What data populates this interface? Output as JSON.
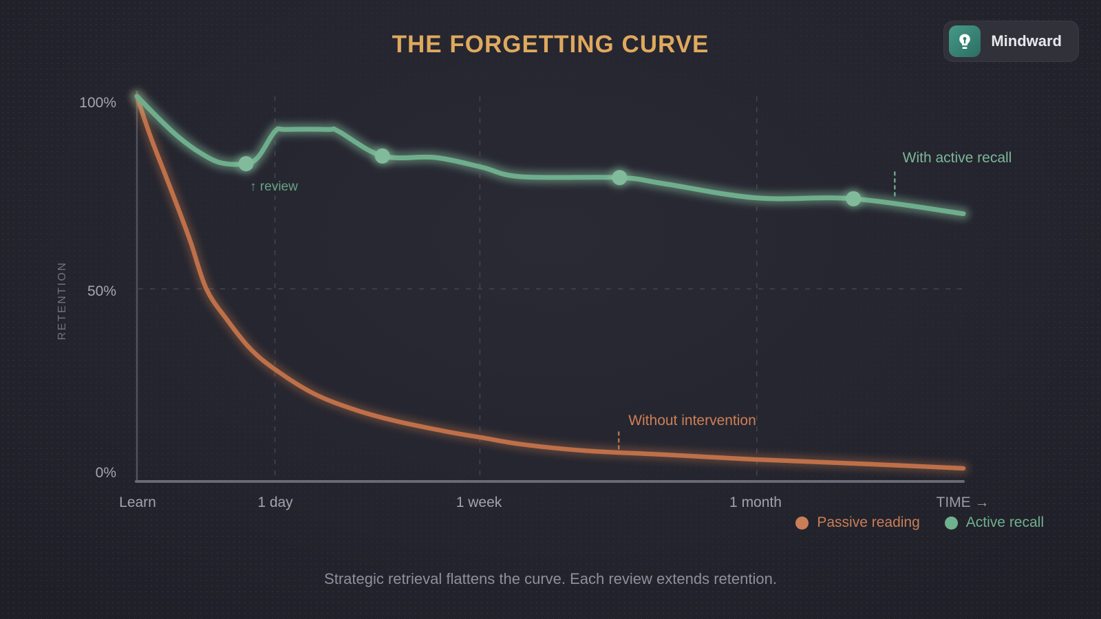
{
  "header": {
    "title": "THE FORGETTING CURVE"
  },
  "badge": {
    "label": "Mindward",
    "icon": "lightbulb-icon"
  },
  "footer": {
    "caption": "Strategic retrieval flattens the curve. Each review extends retention."
  },
  "colors": {
    "background": "#25252f",
    "title_gold": "#dfa95e",
    "axis_line": "#6a6a74",
    "grid_line": "#45454f",
    "tick_text": "#a3a3ae",
    "passive_orange": "#bf7049",
    "active_green": "#6fae8c",
    "marker_green": "#82bb9b"
  },
  "chart_data": {
    "type": "line",
    "title": "THE FORGETTING CURVE",
    "xlabel": "TIME →",
    "ylabel": "RETENTION",
    "xlim": [
      0,
      100
    ],
    "ylim": [
      0,
      100
    ],
    "grid": {
      "vertical_x": [
        16.7,
        41.5,
        75.0
      ],
      "horizontal_pct": [
        50
      ]
    },
    "x_ticks": [
      {
        "pos": 0,
        "label": "Learn"
      },
      {
        "pos": 16.7,
        "label": "1 day"
      },
      {
        "pos": 41.5,
        "label": "1 week"
      },
      {
        "pos": 75.0,
        "label": "1 month"
      }
    ],
    "x_end_label": "TIME →",
    "y_ticks": [
      {
        "pct": 100,
        "label": "100%"
      },
      {
        "pct": 50,
        "label": "50%"
      },
      {
        "pct": 0,
        "label": "0%"
      }
    ],
    "axis": {
      "line_color": "#6a6a74",
      "vertical_color": "#53535e",
      "grid_color": "#45454f"
    },
    "series": [
      {
        "name": "Passive reading",
        "color": "#bf7049",
        "glow": "rgba(200,125,80,0.30)",
        "width": 6.5,
        "points": [
          [
            0,
            100
          ],
          [
            0.9,
            94.1
          ],
          [
            2,
            87.5
          ],
          [
            3.4,
            79.8
          ],
          [
            4.8,
            72
          ],
          [
            6.5,
            62.1
          ],
          [
            8.4,
            50
          ],
          [
            10.9,
            42
          ],
          [
            13.7,
            34.5
          ],
          [
            16.7,
            29.1
          ],
          [
            21.5,
            22.7
          ],
          [
            26.7,
            18.4
          ],
          [
            31.7,
            15.5
          ],
          [
            37.6,
            12.9
          ],
          [
            41.7,
            11.4
          ],
          [
            46.7,
            9.6
          ],
          [
            54.2,
            8
          ],
          [
            63.4,
            7
          ],
          [
            75,
            5.7
          ],
          [
            87.5,
            4.6
          ],
          [
            100,
            3.4
          ]
        ]
      },
      {
        "name": "Active recall",
        "color": "#6fae8c",
        "glow": "rgba(143,207,171,0.40)",
        "width": 7,
        "points": [
          [
            0,
            100
          ],
          [
            2.6,
            94.3
          ],
          [
            5.1,
            89.3
          ],
          [
            7.6,
            85.4
          ],
          [
            10.2,
            82.7
          ],
          [
            13.2,
            82.5
          ],
          [
            14.7,
            84.3
          ],
          [
            16.7,
            90.9
          ],
          [
            18,
            91.4
          ],
          [
            23.2,
            91.4
          ],
          [
            24.4,
            90.9
          ],
          [
            29.7,
            84.5
          ],
          [
            36.1,
            84.1
          ],
          [
            41.7,
            81.6
          ],
          [
            46.5,
            79.1
          ],
          [
            58.4,
            78.9
          ],
          [
            63.8,
            77.3
          ],
          [
            75,
            73.6
          ],
          [
            86.7,
            73.4
          ],
          [
            100,
            69.5
          ]
        ],
        "markers": [
          [
            13.2,
            82.5
          ],
          [
            29.7,
            84.5
          ],
          [
            58.4,
            78.9
          ],
          [
            86.7,
            73.4
          ]
        ],
        "marker_color": "#82bb9b",
        "marker_radius": 11
      }
    ],
    "annotations": [
      {
        "id": "review",
        "text": "↑ review",
        "color": "#68a384"
      },
      {
        "id": "with-active-recall",
        "text": "With active recall",
        "color": "#7cb898",
        "connector": {
          "x": 91.7,
          "from_pct": 80.3,
          "to_pct": 74.2
        }
      },
      {
        "id": "without-intervention",
        "text": "Without intervention",
        "color": "#cd8055",
        "connector": {
          "x": 58.3,
          "from_pct": 12.8,
          "to_pct": 8.1
        }
      }
    ],
    "legend": {
      "position": "bottom-right",
      "items": [
        {
          "label": "Passive reading",
          "color": "#c97e57"
        },
        {
          "label": "Active recall",
          "color": "#6fb18e"
        }
      ]
    }
  }
}
